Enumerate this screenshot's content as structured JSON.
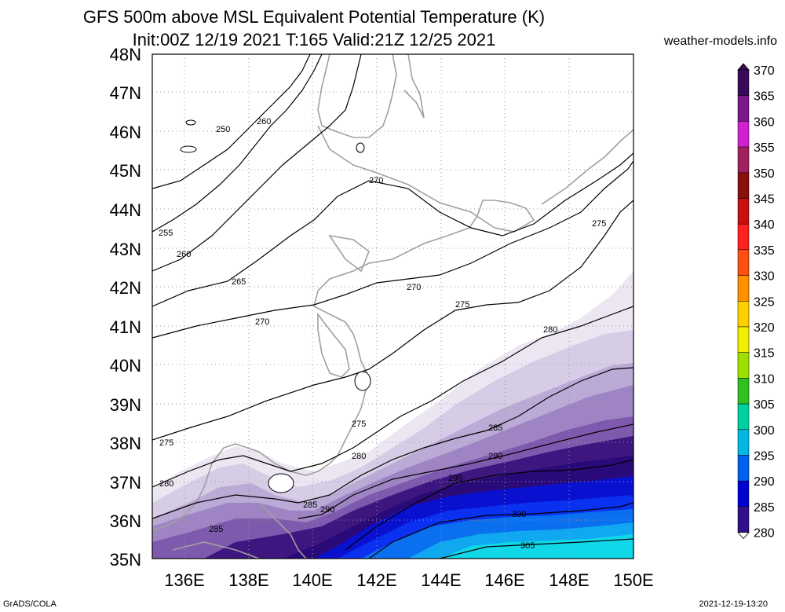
{
  "header": {
    "title_line1": "GFS 500m above MSL Equivalent Potential Temperature (K)",
    "title_line2": "Init:00Z 12/19 2021 T:165 Valid:21Z 12/25 2021",
    "site": "weather-models.info"
  },
  "footer": {
    "left": "GrADS/COLA",
    "right": "2021-12-19-13:20"
  },
  "map": {
    "lat_labels": [
      "48N",
      "47N",
      "46N",
      "45N",
      "44N",
      "43N",
      "42N",
      "41N",
      "40N",
      "39N",
      "38N",
      "37N",
      "36N",
      "35N"
    ],
    "lon_labels": [
      "136E",
      "138E",
      "140E",
      "142E",
      "144E",
      "146E",
      "148E",
      "150E"
    ],
    "contour_labels": [
      "250",
      "260",
      "255",
      "260",
      "265",
      "270",
      "270",
      "270",
      "275",
      "275",
      "280",
      "275",
      "275",
      "280",
      "280",
      "285",
      "285",
      "290",
      "295",
      "290",
      "300",
      "305",
      "285"
    ]
  },
  "colorbar": {
    "labels": [
      "370",
      "365",
      "360",
      "355",
      "350",
      "345",
      "340",
      "335",
      "330",
      "325",
      "320",
      "315",
      "310",
      "305",
      "300",
      "295",
      "290",
      "285",
      "280"
    ],
    "colors": [
      "#3a0a5a",
      "#7a1a8a",
      "#d020d0",
      "#a02060",
      "#8a1010",
      "#c81010",
      "#ff2020",
      "#ff5010",
      "#ff9000",
      "#ffd000",
      "#f0f000",
      "#a0e000",
      "#30c020",
      "#00d0a0",
      "#00b8e0",
      "#0060f0",
      "#0000d0",
      "#30108a",
      "#7a3aa0"
    ]
  },
  "fields": {
    "colors": {
      "c280": "#ece6f3",
      "c282": "#d6cce6",
      "c284": "#bba9d6",
      "c285": "#9f84c4",
      "c287": "#7e5aae",
      "c289": "#5d3295",
      "c290": "#3d1680",
      "c292": "#2a0a78",
      "c295": "#0a10d0",
      "c297": "#0a30f0",
      "c300": "#0a70f0",
      "c302": "#10a8f0",
      "c305": "#10d8e8"
    }
  }
}
